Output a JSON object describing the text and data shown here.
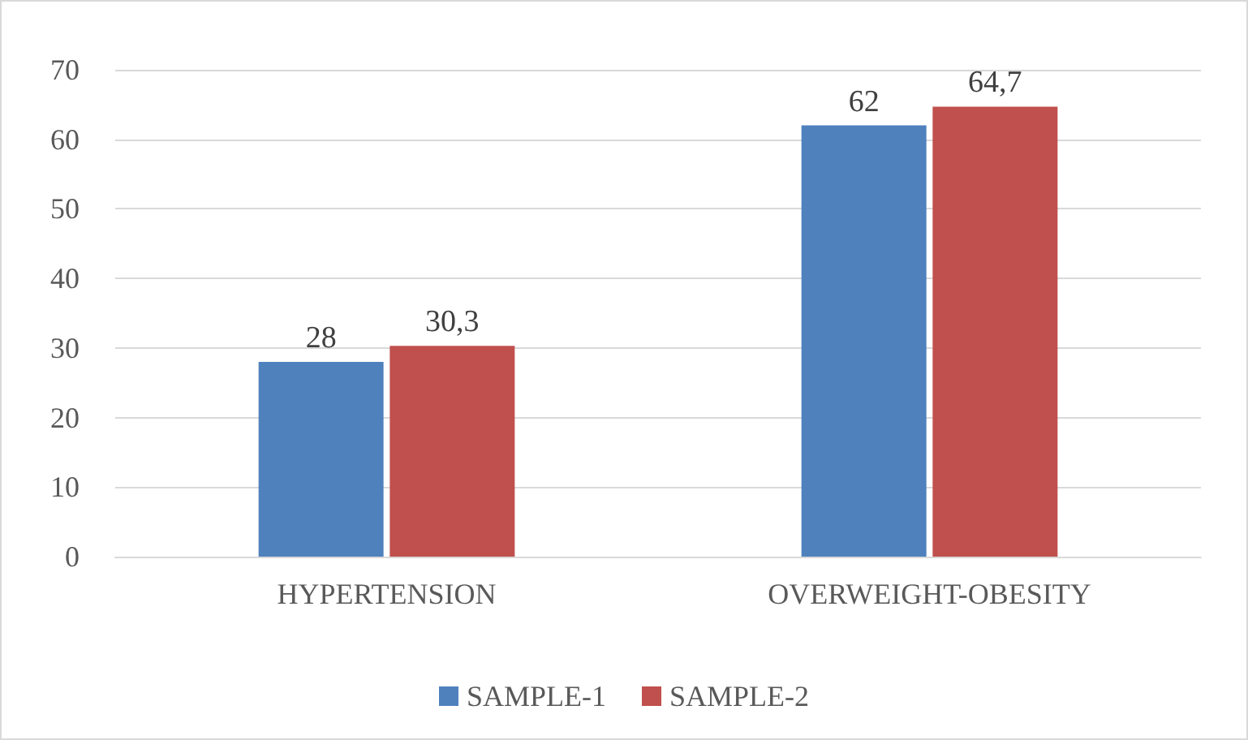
{
  "chart_data": {
    "type": "bar",
    "categories": [
      "HYPERTENSION",
      "OVERWEIGHT-OBESITY"
    ],
    "series": [
      {
        "name": "SAMPLE-1",
        "color": "#4f81bd",
        "values": [
          28,
          62
        ],
        "value_labels": [
          "28",
          "62"
        ]
      },
      {
        "name": "SAMPLE-2",
        "color": "#c0504d",
        "values": [
          30.3,
          64.7
        ],
        "value_labels": [
          "30,3",
          "64,7"
        ]
      }
    ],
    "ylim": [
      0,
      70
    ],
    "yticks": [
      0,
      10,
      20,
      30,
      40,
      50,
      60,
      70
    ],
    "grid": "y",
    "legend": "bottom"
  }
}
